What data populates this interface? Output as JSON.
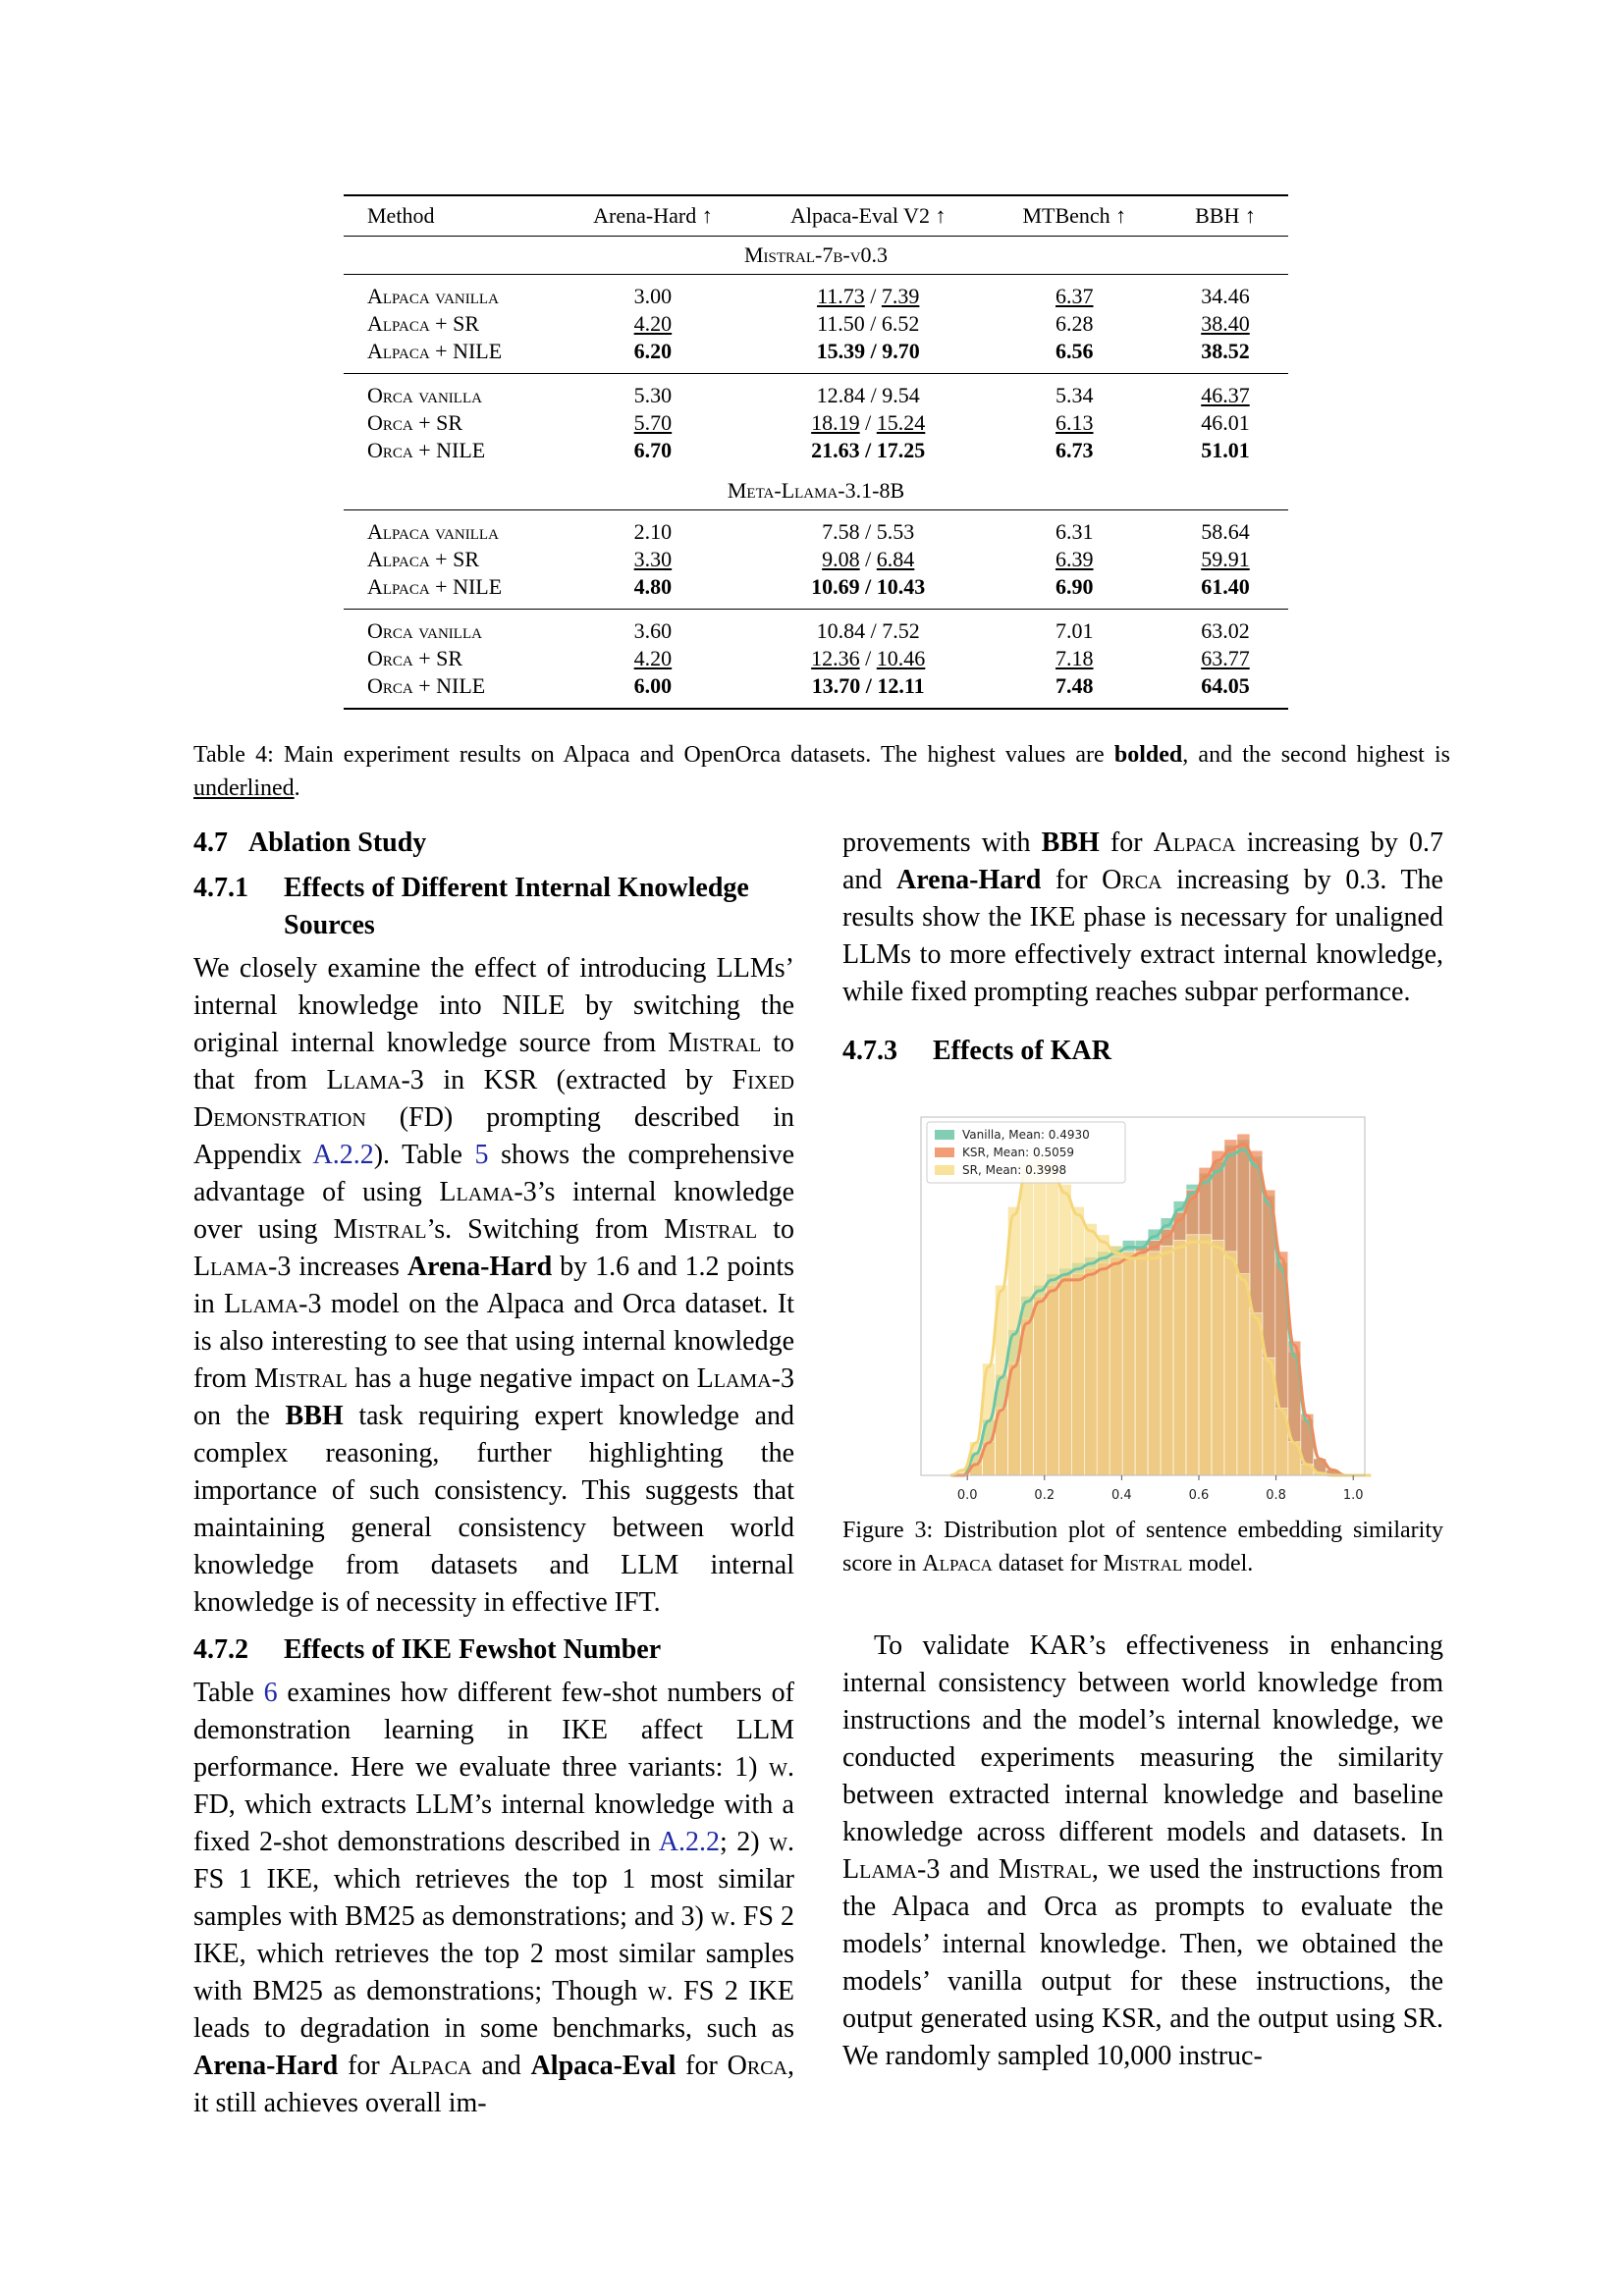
{
  "table": {
    "headers": [
      "Method",
      "Arena-Hard ↑",
      "Alpaca-Eval V2 ↑",
      "MTBench ↑",
      "BBH ↑"
    ],
    "sections": [
      {
        "model": "Mistral-7b-v0.3",
        "groups": [
          [
            {
              "method": "Alpaca vanilla",
              "arena": "3.00",
              "alpaca_a": "11.73",
              "alpaca_b": "7.39",
              "mt": "6.37",
              "bbh": "34.46",
              "fmt": [
                "",
                "u",
                "u",
                "u",
                ""
              ]
            },
            {
              "method": "Alpaca + SR",
              "arena": "4.20",
              "alpaca_a": "11.50",
              "alpaca_b": "6.52",
              "mt": "6.28",
              "bbh": "38.40",
              "fmt": [
                "u",
                "",
                "",
                "",
                "u"
              ]
            },
            {
              "method": "Alpaca + NILE",
              "arena": "6.20",
              "alpaca_a": "15.39",
              "alpaca_b": "9.70",
              "mt": "6.56",
              "bbh": "38.52",
              "fmt": [
                "b",
                "b",
                "b",
                "b",
                "b"
              ]
            }
          ],
          [
            {
              "method": "Orca vanilla",
              "arena": "5.30",
              "alpaca_a": "12.84",
              "alpaca_b": "9.54",
              "mt": "5.34",
              "bbh": "46.37",
              "fmt": [
                "",
                "",
                "",
                "",
                "u"
              ]
            },
            {
              "method": "Orca + SR",
              "arena": "5.70",
              "alpaca_a": "18.19",
              "alpaca_b": "15.24",
              "mt": "6.13",
              "bbh": "46.01",
              "fmt": [
                "u",
                "u",
                "u",
                "u",
                ""
              ]
            },
            {
              "method": "Orca + NILE",
              "arena": "6.70",
              "alpaca_a": "21.63",
              "alpaca_b": "17.25",
              "mt": "6.73",
              "bbh": "51.01",
              "fmt": [
                "b",
                "b",
                "b",
                "b",
                "b"
              ]
            }
          ]
        ]
      },
      {
        "model": "Meta-Llama-3.1-8B",
        "groups": [
          [
            {
              "method": "Alpaca vanilla",
              "arena": "2.10",
              "alpaca_a": "7.58",
              "alpaca_b": "5.53",
              "mt": "6.31",
              "bbh": "58.64",
              "fmt": [
                "",
                "",
                "",
                "",
                ""
              ]
            },
            {
              "method": "Alpaca + SR",
              "arena": "3.30",
              "alpaca_a": "9.08",
              "alpaca_b": "6.84",
              "mt": "6.39",
              "bbh": "59.91",
              "fmt": [
                "u",
                "u",
                "u",
                "u",
                "u"
              ]
            },
            {
              "method": "Alpaca + NILE",
              "arena": "4.80",
              "alpaca_a": "10.69",
              "alpaca_b": "10.43",
              "mt": "6.90",
              "bbh": "61.40",
              "fmt": [
                "b",
                "b",
                "b",
                "b",
                "b"
              ]
            }
          ],
          [
            {
              "method": "Orca vanilla",
              "arena": "3.60",
              "alpaca_a": "10.84",
              "alpaca_b": "7.52",
              "mt": "7.01",
              "bbh": "63.02",
              "fmt": [
                "",
                "",
                "",
                "",
                ""
              ]
            },
            {
              "method": "Orca + SR",
              "arena": "4.20",
              "alpaca_a": "12.36",
              "alpaca_b": "10.46",
              "mt": "7.18",
              "bbh": "63.77",
              "fmt": [
                "u",
                "u",
                "u",
                "u",
                "u"
              ]
            },
            {
              "method": "Orca + NILE",
              "arena": "6.00",
              "alpaca_a": "13.70",
              "alpaca_b": "12.11",
              "mt": "7.48",
              "bbh": "64.05",
              "fmt": [
                "b",
                "b",
                "b",
                "b",
                "b"
              ]
            }
          ]
        ]
      }
    ],
    "caption": {
      "label": "Table 4:",
      "text1": " Main experiment results on Alpaca and OpenOrca datasets. The highest values are ",
      "bolded": "bolded",
      "text2": ", and the second highest is ",
      "underlined": "underlined",
      "text3": "."
    }
  },
  "sections": {
    "s47": {
      "num": "4.7",
      "title": "Ablation Study"
    },
    "s471": {
      "num": "4.7.1",
      "title": "Effects of Different Internal Knowledge Sources"
    },
    "s472": {
      "num": "4.7.2",
      "title": "Effects of IKE Fewshot Number"
    },
    "s473": {
      "num": "4.7.3",
      "title": "Effects of KAR"
    }
  },
  "p471": [
    "We closely examine the effect of introducing LLMs’ internal knowledge into NILE by switching the original internal knowledge source from ",
    "Mistral",
    " to that from ",
    "Llama",
    "-3 in KSR (extracted by ",
    "Fixed Demonstration",
    " (FD) prompting described in Appendix ",
    "A.2.2",
    "). Table ",
    "5",
    " shows the comprehensive advantage of using ",
    "Llama",
    "-3’s internal knowledge over using ",
    "Mistral",
    "’s. Switching from ",
    "Mistral",
    " to ",
    "Llama",
    "-3 increases ",
    "Arena-Hard",
    " by 1.6 and 1.2 points in ",
    "Llama",
    "-3 model on the Alpaca and Orca dataset. It is also interesting to see that using internal knowledge from ",
    "Mistral",
    " has a huge negative impact on ",
    "Llama",
    "-3 on the ",
    "BBH",
    " task requiring expert knowledge and complex reasoning, further highlighting the importance of such consistency. This suggests that maintaining general consistency between world knowledge from datasets and LLM internal knowledge is of necessity in effective IFT."
  ],
  "p472": [
    "Table ",
    "6",
    " examines how different few-shot numbers of demonstration learning in IKE affect LLM performance. Here we evaluate three variants: 1) ",
    "w.",
    " FD, which extracts LLM’s internal knowledge with a fixed 2-shot demonstrations described in ",
    "A.2.2",
    "; 2) ",
    "w.",
    " FS 1 IKE, which retrieves the top 1 most similar samples with BM25 as demonstrations; and 3) ",
    "w.",
    " FS 2 IKE, which retrieves the top 2 most similar samples with BM25 as demonstrations; Though ",
    "w.",
    " FS 2 IKE leads to degradation in some benchmarks, such as ",
    "Arena-Hard",
    " for ",
    "Alpaca",
    " and ",
    "Alpaca-Eval",
    " for ",
    "Orca",
    ", it still achieves overall im-"
  ],
  "p472b": [
    "provements with ",
    "BBH",
    " for ",
    "Alpaca",
    " increasing by 0.7 and ",
    "Arena-Hard",
    " for ",
    "Orca",
    " increasing by 0.3. The results show the IKE phase is necessary for unaligned LLMs to more effectively extract internal knowledge, while fixed prompting reaches subpar performance."
  ],
  "figure": {
    "caption_label": "Figure 3:",
    "caption_text1": " Distribution plot of sentence embedding similarity score in ",
    "caption_sc1": "Alpaca",
    "caption_text2": " dataset for ",
    "caption_sc2": "Mistral",
    "caption_text3": " model."
  },
  "p473": [
    "To validate KAR’s effectiveness in enhancing internal consistency between world knowledge from instructions and the model’s internal knowledge, we conducted experiments measuring the similarity between extracted internal knowledge and baseline knowledge across different models and datasets. In ",
    "Llama",
    "-3 and ",
    "Mistral",
    ", we used the instructions from the Alpaca and Orca as prompts to evaluate the models’ internal knowledge. Then, we obtained the models’ vanilla output for these instructions, the output generated using KSR, and the output using SR. We randomly sampled 10,000 instruc-"
  ],
  "chart_data": {
    "type": "histogram",
    "xlim": [
      -0.12,
      1.03
    ],
    "xticks": [
      "0.0",
      "0.2",
      "0.4",
      "0.6",
      "0.8",
      "1.0"
    ],
    "grid": false,
    "legend_position": "top-left",
    "bin_width": 0.033,
    "bin_start": -0.06,
    "series": [
      {
        "name": "Vanilla, Mean: 0.4930",
        "color": "#6cc6a6",
        "values": [
          0,
          0,
          0.2,
          0.5,
          0.9,
          1.3,
          1.6,
          1.7,
          1.8,
          1.85,
          1.9,
          1.95,
          2.0,
          2.05,
          2.1,
          2.1,
          2.2,
          2.3,
          2.45,
          2.6,
          2.7,
          2.8,
          2.95,
          3.0,
          2.85,
          2.5,
          1.9,
          1.1,
          0.5,
          0.15,
          0.05,
          0,
          0,
          0
        ]
      },
      {
        "name": "KSR, Mean: 0.5059",
        "color": "#ef8c5e",
        "values": [
          0,
          0,
          0.1,
          0.3,
          0.6,
          1.0,
          1.4,
          1.6,
          1.7,
          1.8,
          1.8,
          1.85,
          1.9,
          1.95,
          2.0,
          2.05,
          2.1,
          2.2,
          2.35,
          2.55,
          2.75,
          2.9,
          3.0,
          3.05,
          2.9,
          2.55,
          2.0,
          1.2,
          0.55,
          0.15,
          0.05,
          0,
          0,
          0
        ]
      },
      {
        "name": "SR, Mean: 0.3998",
        "color": "#f8dd8a",
        "values": [
          0,
          0.05,
          0.3,
          1.0,
          1.7,
          2.4,
          2.8,
          2.85,
          2.8,
          2.6,
          2.4,
          2.25,
          2.15,
          2.05,
          2.0,
          2.0,
          2.0,
          2.05,
          2.1,
          2.15,
          2.15,
          2.1,
          2.0,
          1.8,
          1.45,
          1.05,
          0.6,
          0.3,
          0.1,
          0.02,
          0,
          0,
          0,
          0
        ]
      }
    ]
  }
}
